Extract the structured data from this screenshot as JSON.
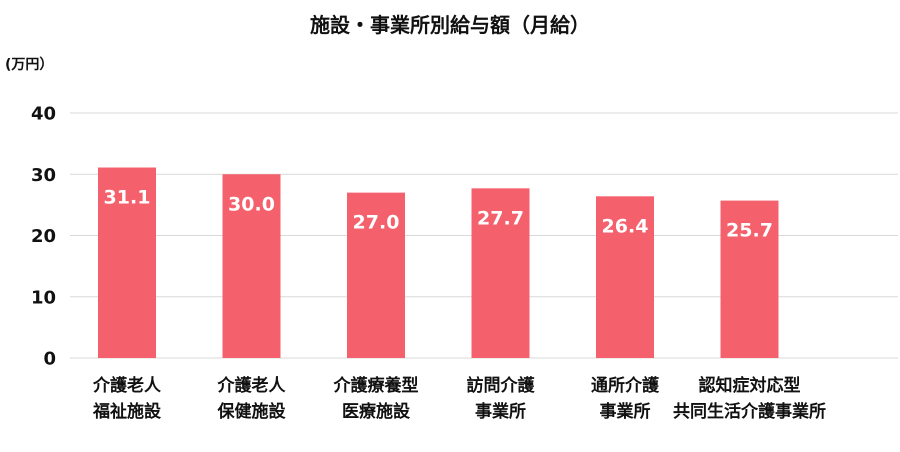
{
  "chart_data": {
    "type": "bar",
    "title": "施設・事業所別給与額（月給）",
    "ylabel": "(万円）",
    "categories": [
      [
        "介護老人",
        "福祉施設"
      ],
      [
        "介護老人",
        "保健施設"
      ],
      [
        "介護療養型",
        "医療施設"
      ],
      [
        "訪問介護",
        "事業所"
      ],
      [
        "通所介護",
        "事業所"
      ],
      [
        "認知症対応型",
        "共同生活介護事業所"
      ]
    ],
    "values": [
      31.1,
      30.0,
      27.0,
      27.7,
      26.4,
      25.7
    ],
    "data_labels": [
      "31.1",
      "30.0",
      "27.0",
      "27.7",
      "26.4",
      "25.7"
    ],
    "ylim": [
      0,
      40
    ],
    "yticks": [
      0,
      10,
      20,
      30,
      40
    ],
    "grid": true,
    "colors": {
      "bar": "#F4616C",
      "grid": "#D9D9D9",
      "text": "#111111",
      "data_label": "#FFFFFF"
    }
  }
}
